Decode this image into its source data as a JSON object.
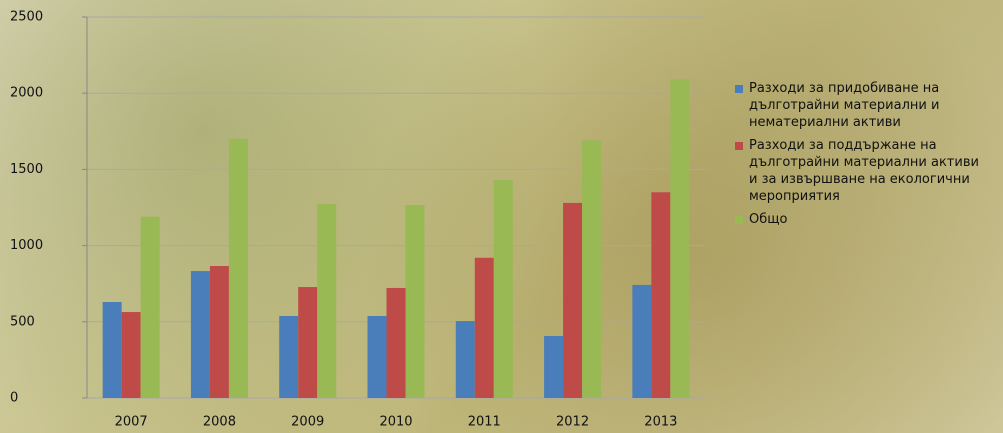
{
  "chart_data": {
    "type": "bar",
    "categories": [
      "2007",
      "2008",
      "2009",
      "2010",
      "2011",
      "2012",
      "2013"
    ],
    "series": [
      {
        "name": "Разходи за придобиване на дълготрайни материални и нематериални активи",
        "color": "#4a7ebb",
        "values": [
          630,
          833,
          538,
          538,
          505,
          407,
          742
        ]
      },
      {
        "name": "Разходи за поддържане на дълготрайни материални активи и за извършване на екологични мероприятия",
        "color": "#be4b48",
        "values": [
          564,
          866,
          728,
          722,
          920,
          1280,
          1350
        ]
      },
      {
        "name": "Общо",
        "color": "#98b954",
        "values": [
          1190,
          1700,
          1273,
          1266,
          1430,
          1690,
          2090
        ]
      }
    ],
    "ylim": [
      0,
      2500
    ],
    "yticks": [
      0,
      500,
      1000,
      1500,
      2000,
      2500
    ],
    "grid": true,
    "legend": "right"
  }
}
